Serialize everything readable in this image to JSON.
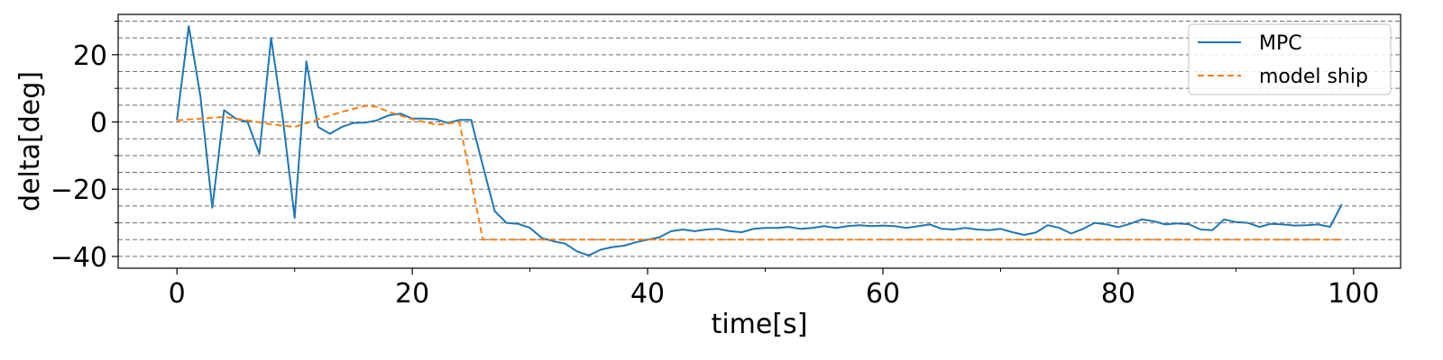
{
  "chart_data": {
    "type": "line",
    "xlabel": "time[s]",
    "ylabel": "delta[deg]",
    "xlim": [
      -5,
      104
    ],
    "ylim": [
      -43.5,
      32
    ],
    "xticks": [
      0,
      20,
      40,
      60,
      80,
      100
    ],
    "xtick_labels": [
      "0",
      "20",
      "40",
      "60",
      "80",
      "100"
    ],
    "yticks": [
      -40,
      -20,
      0,
      20
    ],
    "ytick_labels": [
      "−40",
      "−20",
      "0",
      "20"
    ],
    "grid": "horizontal dashed, every 5 deg",
    "grid_values": [
      -40,
      -35,
      -30,
      -25,
      -20,
      -15,
      -10,
      -5,
      0,
      5,
      10,
      15,
      20,
      25,
      30
    ],
    "legend_position": "top-right",
    "series": [
      {
        "name": "MPC",
        "color": "#1f77b4",
        "style": "solid",
        "x": [
          0,
          1,
          2,
          3,
          4,
          5,
          6,
          7,
          8,
          9,
          10,
          11,
          12,
          13,
          14,
          15,
          16,
          17,
          18,
          19,
          20,
          21,
          22,
          23,
          24,
          25,
          26,
          27,
          28,
          29,
          30,
          31,
          32,
          33,
          34,
          35,
          36,
          37,
          38,
          39,
          40,
          41,
          42,
          43,
          44,
          45,
          46,
          47,
          48,
          49,
          50,
          51,
          52,
          53,
          54,
          55,
          56,
          57,
          58,
          59,
          60,
          61,
          62,
          63,
          64,
          65,
          66,
          67,
          68,
          69,
          70,
          71,
          72,
          73,
          74,
          75,
          76,
          77,
          78,
          79,
          80,
          81,
          82,
          83,
          84,
          85,
          86,
          87,
          88,
          89,
          90,
          91,
          92,
          93,
          94,
          95,
          96,
          97,
          98,
          99
        ],
        "y": [
          0.5,
          28.5,
          7.5,
          -25.5,
          3.5,
          1,
          0,
          -9.5,
          25,
          1,
          -28.5,
          18,
          -1.5,
          -3.5,
          -1.5,
          -0.3,
          -0.2,
          0.5,
          2,
          2.5,
          1,
          1,
          0.8,
          -0.3,
          0.6,
          0.6,
          -13,
          -26.5,
          -30,
          -30.3,
          -31.5,
          -34.5,
          -35.5,
          -36.2,
          -38.5,
          -39.7,
          -38,
          -37.2,
          -36.8,
          -35.8,
          -35,
          -34.3,
          -32.5,
          -32,
          -32.5,
          -32,
          -31.8,
          -32.5,
          -32.8,
          -31.8,
          -31.5,
          -31.5,
          -31.2,
          -31.8,
          -31.5,
          -31,
          -31.5,
          -31,
          -30.7,
          -31,
          -30.8,
          -31,
          -31.5,
          -31,
          -30.5,
          -31.8,
          -32,
          -31.5,
          -32,
          -32.2,
          -31.8,
          -32.8,
          -33.6,
          -32.9,
          -30.7,
          -31.5,
          -33.2,
          -31.8,
          -30,
          -30.5,
          -31.3,
          -30.3,
          -29,
          -29.5,
          -30.5,
          -30.2,
          -30.4,
          -32,
          -32.2,
          -29,
          -29.8,
          -30,
          -31.2,
          -30.3,
          -30.5,
          -30.8,
          -30.7,
          -30.5,
          -31.2,
          -24.5
        ]
      },
      {
        "name": "model ship",
        "color": "#ff7f0e",
        "style": "dashed",
        "x": [
          0,
          2,
          4,
          6,
          8,
          10,
          12,
          14,
          16,
          17,
          18,
          20,
          22,
          23,
          24,
          26,
          30,
          40,
          50,
          60,
          70,
          80,
          90,
          99
        ],
        "y": [
          0.5,
          1,
          1.5,
          0.5,
          -0.7,
          -1.5,
          0.8,
          3,
          4.8,
          4.5,
          3,
          0.8,
          -0.8,
          -0.5,
          0,
          -35,
          -35,
          -35,
          -35,
          -35,
          -35,
          -35,
          -35,
          -35
        ]
      }
    ]
  }
}
